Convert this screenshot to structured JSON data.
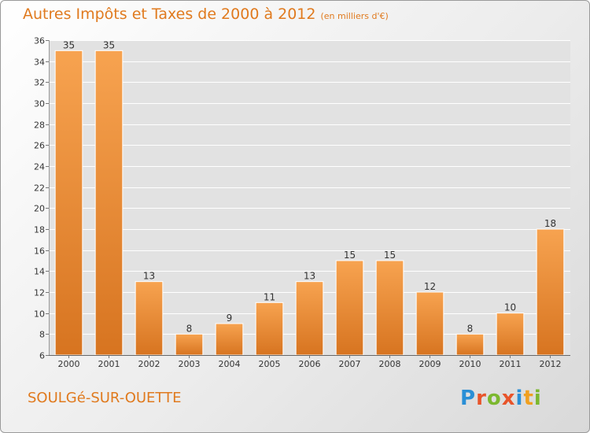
{
  "title": "Autres Impôts et Taxes de 2000 à 2012",
  "unit": "(en milliers d'€)",
  "commune": "SOULGé-SUR-OUETTE",
  "logo_text": "Proxiti",
  "colors": {
    "title": "#e07a1e",
    "bar_light": "#f7a350",
    "bar_dark": "#d77420",
    "grid": "#ffffff",
    "plot_bg": "#e2e2e2"
  },
  "chart_data": {
    "type": "bar",
    "title": "Autres Impôts et Taxes de 2000 à 2012",
    "subtitle": "(en milliers d'€)",
    "xlabel": "",
    "ylabel": "",
    "categories": [
      "2000",
      "2001",
      "2002",
      "2003",
      "2004",
      "2005",
      "2006",
      "2007",
      "2008",
      "2009",
      "2010",
      "2011",
      "2012"
    ],
    "values": [
      35,
      35,
      13,
      8,
      9,
      11,
      13,
      15,
      15,
      12,
      8,
      10,
      18
    ],
    "ylim": [
      6,
      36
    ],
    "yticks": [
      6,
      8,
      10,
      12,
      14,
      16,
      18,
      20,
      22,
      24,
      26,
      28,
      30,
      32,
      34,
      36
    ],
    "grid": true,
    "legend": "none"
  }
}
